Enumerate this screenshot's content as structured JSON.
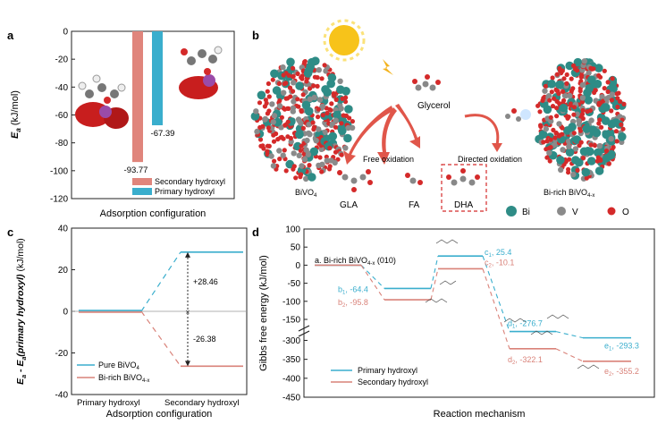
{
  "panels": {
    "a": {
      "label": "a",
      "ylabel_main": "E",
      "ylabel_sub": "a",
      "ylabel_unit": " (kJ/mol)",
      "xlabel": "Adsorption configuration",
      "legend": [
        "Secondary hydroxyl",
        "Primary hydroxyl"
      ]
    },
    "b": {
      "label": "b",
      "labels": {
        "glycerol": "Glycerol",
        "free_oxidation": "Free oxidation",
        "directed_oxidation": "Directed oxidation",
        "bivo4": "BiVO",
        "bivo4_sub": "4",
        "bi_rich": "Bi-rich BiVO",
        "bi_rich_sub": "4-x",
        "gla": "GLA",
        "fa": "FA",
        "dha": "DHA"
      },
      "legend": {
        "bi": "Bi",
        "v": "V",
        "o": "O"
      },
      "colors": {
        "bi": "#2e8c86",
        "v": "#8a8a8a",
        "o": "#d42a2a"
      }
    },
    "c": {
      "label": "c",
      "ylabel": "E",
      "xlabel": "Adsorption configuration",
      "legend": [
        "Pure BiVO",
        "Bi-rich BiVO"
      ],
      "legend_subs": [
        "4",
        "4-x"
      ],
      "annotations": [
        "+28.46",
        "-26.38"
      ]
    },
    "d": {
      "label": "d",
      "ylabel": "Gibbs free energy (kJ/mol)",
      "xlabel": "Reaction mechanism",
      "title_prefix": "a. Bi-rich BiVO",
      "title_sub": "4-x",
      "title_suffix": " (010)",
      "legend": [
        "Primary hydroxyl",
        "Secondary hydroxyl"
      ]
    }
  },
  "chart_data": [
    {
      "type": "bar",
      "panel": "a",
      "categories": [
        "Secondary hydroxyl",
        "Primary hydroxyl"
      ],
      "values": [
        -93.77,
        -67.39
      ],
      "value_labels": [
        "-93.77",
        "-67.39"
      ],
      "colors": [
        "#e0857c",
        "#3aaecd"
      ],
      "ylim": [
        -120,
        0
      ],
      "yticks": [
        0,
        -20,
        -40,
        -60,
        -80,
        -100,
        -120
      ],
      "ytick_labels": [
        "0",
        "-20",
        "-40",
        "-60",
        "-80",
        "-100",
        "-120"
      ]
    },
    {
      "type": "line",
      "panel": "c",
      "categories": [
        "Primary hydroxyl",
        "Secondary hydroxyl"
      ],
      "series": [
        {
          "name": "Pure BiVO4",
          "values": [
            0,
            28.46
          ],
          "color": "#3aaecd"
        },
        {
          "name": "Bi-rich BiVO4-x",
          "values": [
            0,
            -26.38
          ],
          "color": "#d98279"
        }
      ],
      "ylim": [
        -40,
        40
      ],
      "yticks": [
        40,
        20,
        0,
        -20,
        -40
      ],
      "ytick_labels": [
        "40",
        "20",
        "0",
        "-20",
        "-40"
      ]
    },
    {
      "type": "line",
      "panel": "d",
      "steps": [
        "a",
        "b",
        "c",
        "d",
        "e"
      ],
      "series": [
        {
          "name": "Primary hydroxyl",
          "values": [
            0,
            -64.4,
            25.4,
            -276.7,
            -293.3
          ],
          "color": "#3aaecd"
        },
        {
          "name": "Secondary hydroxyl",
          "values": [
            0,
            -95.8,
            -10.1,
            -322.1,
            -355.2
          ],
          "color": "#d98279"
        }
      ],
      "point_labels": [
        {
          "text": "b",
          "sub": "1",
          "val": ", -64.4",
          "series": 0
        },
        {
          "text": "b",
          "sub": "2",
          "val": ", -95.8",
          "series": 1
        },
        {
          "text": "c",
          "sub": "1",
          "val": ",  25.4",
          "series": 0
        },
        {
          "text": "c",
          "sub": "2",
          "val": ", -10.1",
          "series": 1
        },
        {
          "text": "d",
          "sub": "1",
          "val": ", -276.7",
          "series": 0
        },
        {
          "text": "d",
          "sub": "2",
          "val": ", -322.1",
          "series": 1
        },
        {
          "text": "e",
          "sub": "1",
          "val": ", -293.3",
          "series": 0
        },
        {
          "text": "e",
          "sub": "2",
          "val": ", -355.2",
          "series": 1
        }
      ],
      "yticks_upper": [
        100,
        50,
        0,
        -50,
        -100,
        -150
      ],
      "yticks_lower": [
        -300,
        -350,
        -400,
        -450
      ],
      "ylim_upper": [
        -150,
        100
      ],
      "ylim_lower": [
        -450,
        -280
      ],
      "axis_break": "between -150 and -280"
    }
  ]
}
